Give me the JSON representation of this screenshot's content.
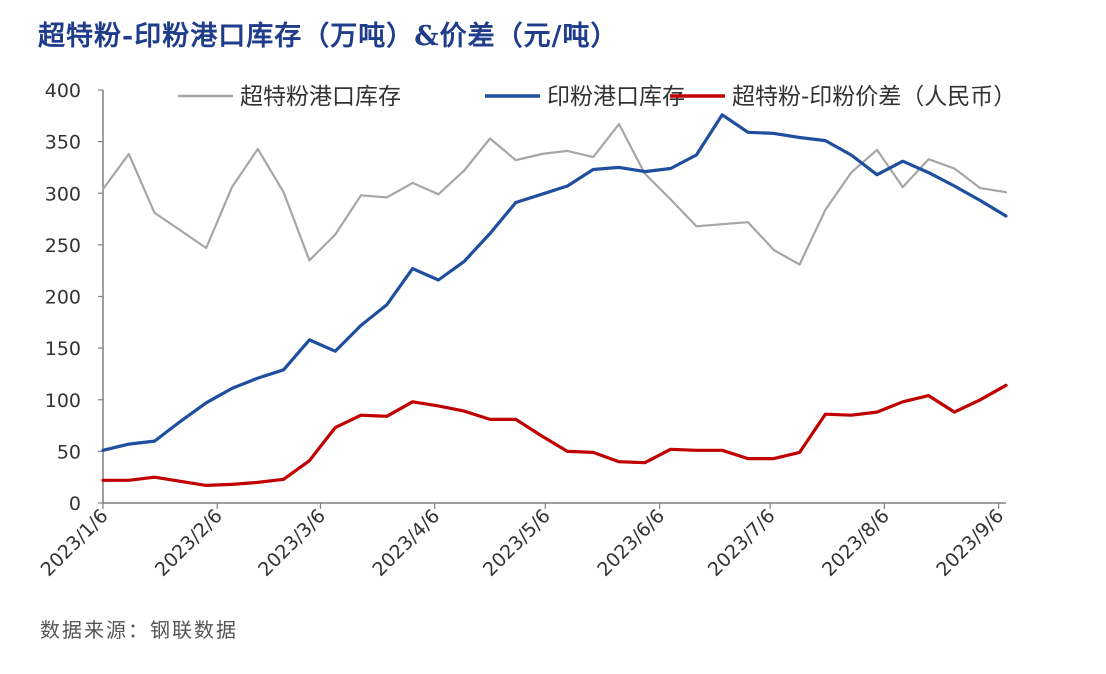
{
  "chart_data": {
    "type": "line",
    "title": "超特粉-印粉港口库存（万吨）&价差（元/吨）",
    "source": "数据来源：钢联数据",
    "ylim": [
      0,
      400
    ],
    "yticks": [
      0,
      50,
      100,
      150,
      200,
      250,
      300,
      350,
      400
    ],
    "xticks": [
      "2023/1/6",
      "2023/2/6",
      "2023/3/6",
      "2023/4/6",
      "2023/5/6",
      "2023/6/6",
      "2023/7/6",
      "2023/8/6",
      "2023/9/6"
    ],
    "x": [
      "2023-01-06",
      "2023-01-13",
      "2023-01-20",
      "2023-01-27",
      "2023-02-03",
      "2023-02-10",
      "2023-02-17",
      "2023-02-24",
      "2023-03-03",
      "2023-03-10",
      "2023-03-17",
      "2023-03-24",
      "2023-03-31",
      "2023-04-07",
      "2023-04-14",
      "2023-04-21",
      "2023-04-28",
      "2023-05-05",
      "2023-05-12",
      "2023-05-19",
      "2023-05-26",
      "2023-06-02",
      "2023-06-09",
      "2023-06-16",
      "2023-06-23",
      "2023-06-30",
      "2023-07-07",
      "2023-07-14",
      "2023-07-21",
      "2023-07-28",
      "2023-08-04",
      "2023-08-11",
      "2023-08-18",
      "2023-08-25",
      "2023-09-01",
      "2023-09-08"
    ],
    "legend_position": "top",
    "grid": false,
    "series": [
      {
        "name": "超特粉港口库存",
        "color": "#a6a6a6",
        "values": [
          304,
          338,
          281,
          264,
          247,
          306,
          343,
          301,
          235,
          260,
          298,
          296,
          310,
          299,
          322,
          353,
          332,
          338,
          341,
          335,
          367,
          319,
          294,
          268,
          270,
          272,
          245,
          231,
          284,
          320,
          342,
          306,
          333,
          324,
          305,
          301
        ]
      },
      {
        "name": "印粉港口库存",
        "color": "#1f4e9e",
        "values": [
          51,
          57,
          60,
          79,
          97,
          111,
          121,
          129,
          158,
          147,
          172,
          192,
          227,
          216,
          234,
          261,
          291,
          299,
          307,
          323,
          325,
          321,
          324,
          337,
          376,
          359,
          358,
          354,
          351,
          337,
          318,
          331,
          320,
          307,
          293,
          278
        ]
      },
      {
        "name": "超特粉-印粉价差（人民币）",
        "color": "#c00000",
        "values": [
          22,
          22,
          25,
          21,
          17,
          18,
          20,
          23,
          41,
          73,
          85,
          84,
          98,
          94,
          89,
          81,
          81,
          65,
          50,
          49,
          40,
          39,
          52,
          51,
          51,
          43,
          43,
          49,
          86,
          85,
          88,
          98,
          104,
          88,
          100,
          114
        ]
      }
    ]
  }
}
